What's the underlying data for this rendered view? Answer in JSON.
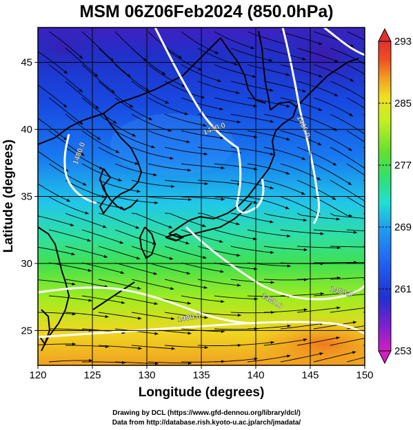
{
  "title": "MSM 06Z06Feb2024 (850.0hPa)",
  "axes": {
    "xlabel": "Longitude (degrees)",
    "ylabel": "Latitude  (degrees)",
    "xlim": [
      120,
      150
    ],
    "ylim": [
      22.4,
      47.6
    ],
    "xticks": [
      120,
      125,
      130,
      135,
      140,
      145,
      150
    ],
    "yticks": [
      25,
      30,
      35,
      40,
      45
    ]
  },
  "colorbar": {
    "ticks": [
      "293",
      "285",
      "277",
      "269",
      "261",
      "253"
    ],
    "range": [
      253,
      293
    ],
    "colors_low_to_high": [
      "#d020c0",
      "#8020d0",
      "#2030d0",
      "#2060f0",
      "#20a0f0",
      "#20e0d0",
      "#30e070",
      "#60e030",
      "#c0f020",
      "#f0e020",
      "#f0a020",
      "#f05020",
      "#e03030"
    ]
  },
  "contour_labels": [
    "1440.0",
    "1400.0",
    "1480.0",
    "1480.0",
    "1480.0",
    "1480.0"
  ],
  "credits": {
    "line1": "Drawing by DCL (https://www.gfd-dennou.org/library/dcl/)",
    "line2": "Data from http://database.rish.kyoto-u.ac.jp/arch/jmadata/"
  },
  "chart_data": {
    "type": "heatmap",
    "variable": "temperature (K) at 850hPa with streamlines and geopotential height contours",
    "x_range": [
      120,
      150
    ],
    "y_range": [
      22.4,
      47.6
    ],
    "temperature_by_latitude": [
      {
        "lat": 47,
        "value": 258
      },
      {
        "lat": 44,
        "value": 260
      },
      {
        "lat": 40,
        "value": 262
      },
      {
        "lat": 37,
        "value": 265
      },
      {
        "lat": 34,
        "value": 270
      },
      {
        "lat": 31,
        "value": 274
      },
      {
        "lat": 28,
        "value": 279
      },
      {
        "lat": 25,
        "value": 285
      },
      {
        "lat": 23,
        "value": 288
      }
    ],
    "contours": [
      {
        "label": "1400.0",
        "value": 1400
      },
      {
        "label": "1440.0",
        "value": 1440
      },
      {
        "label": "1480.0",
        "value": 1480
      }
    ]
  }
}
